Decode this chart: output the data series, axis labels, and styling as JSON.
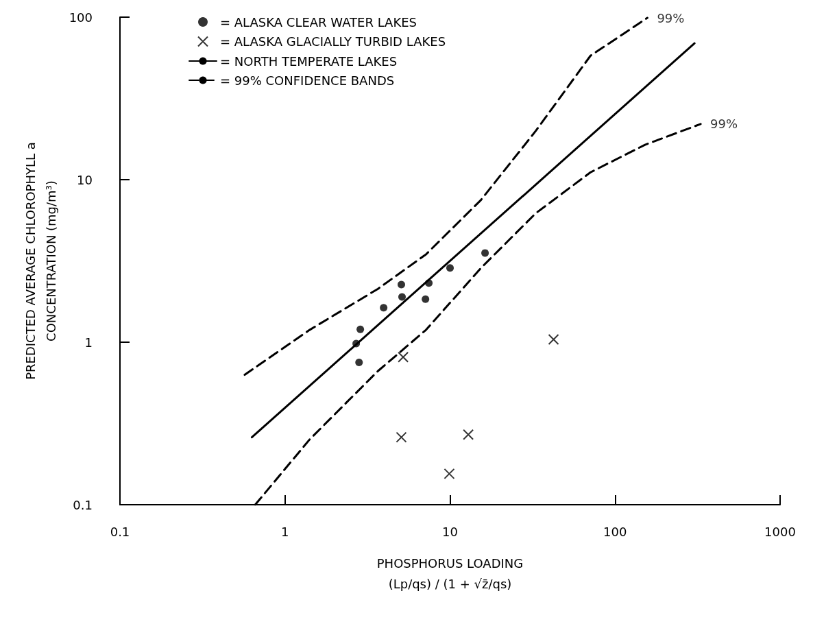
{
  "chart_data": {
    "type": "scatter",
    "xlabel": "PHOSPHORUS LOADING\n(Lp/qs) / (1 + √z̄/qs)",
    "ylabel": "PREDICTED AVERAGE CHLOROPHYLL a\nCONCENTRATION (mg/m³)",
    "log": "xy",
    "xlim": [
      0.1,
      1000
    ],
    "ylim": [
      0.1,
      100
    ],
    "xticks": [
      0.1,
      1,
      10,
      100,
      1000
    ],
    "yticks": [
      0.1,
      1,
      10,
      100
    ],
    "legend": "top left",
    "series": [
      {
        "name": "= ALASKA CLEAR WATER LAKES",
        "marker": "circle",
        "color": "#000000",
        "x": [
          2.86,
          2.7,
          2.81,
          3.96,
          5.07,
          5.12,
          7.1,
          7.44,
          10,
          16.3
        ],
        "values": [
          1.2,
          0.98,
          0.75,
          1.63,
          2.26,
          1.9,
          1.84,
          2.31,
          2.86,
          3.54
        ]
      },
      {
        "name": "= ALASKA GLACIALLY TURBID LAKES",
        "marker": "cross",
        "color": "#000000",
        "x": [
          5.2,
          5.07,
          12.9,
          9.9,
          42.4
        ],
        "values": [
          0.81,
          0.26,
          0.27,
          0.155,
          1.04
        ]
      },
      {
        "name": "= NORTH TEMPERATE LAKES",
        "type": "line",
        "marker": "none",
        "line_style": "solid",
        "color": "#000000",
        "x": [
          0.63,
          303
        ],
        "values": [
          0.26,
          69
        ]
      },
      {
        "name": "= 99% CONFIDENCE BANDS",
        "type": "line",
        "marker": "none",
        "line_style": "dashed",
        "color": "#000000",
        "x": [
          0.57,
          1.41,
          3.66,
          7.15,
          15.4,
          33,
          71,
          157
        ],
        "values": [
          0.63,
          1.19,
          2.13,
          3.47,
          7.5,
          19.9,
          57.9,
          99
        ]
      },
      {
        "type": "line",
        "marker": "none",
        "line_style": "dashed",
        "color": "#000000",
        "x": [
          0.66,
          1.41,
          3.66,
          7.15,
          15.4,
          33,
          71,
          152,
          330
        ],
        "values": [
          0.1,
          0.252,
          0.665,
          1.19,
          2.86,
          6.2,
          11.1,
          16.4,
          22
        ]
      }
    ],
    "annotations": [
      {
        "text": "99%",
        "x": 157,
        "y": 99
      },
      {
        "text": "99%",
        "x": 330,
        "y": 22
      }
    ]
  }
}
